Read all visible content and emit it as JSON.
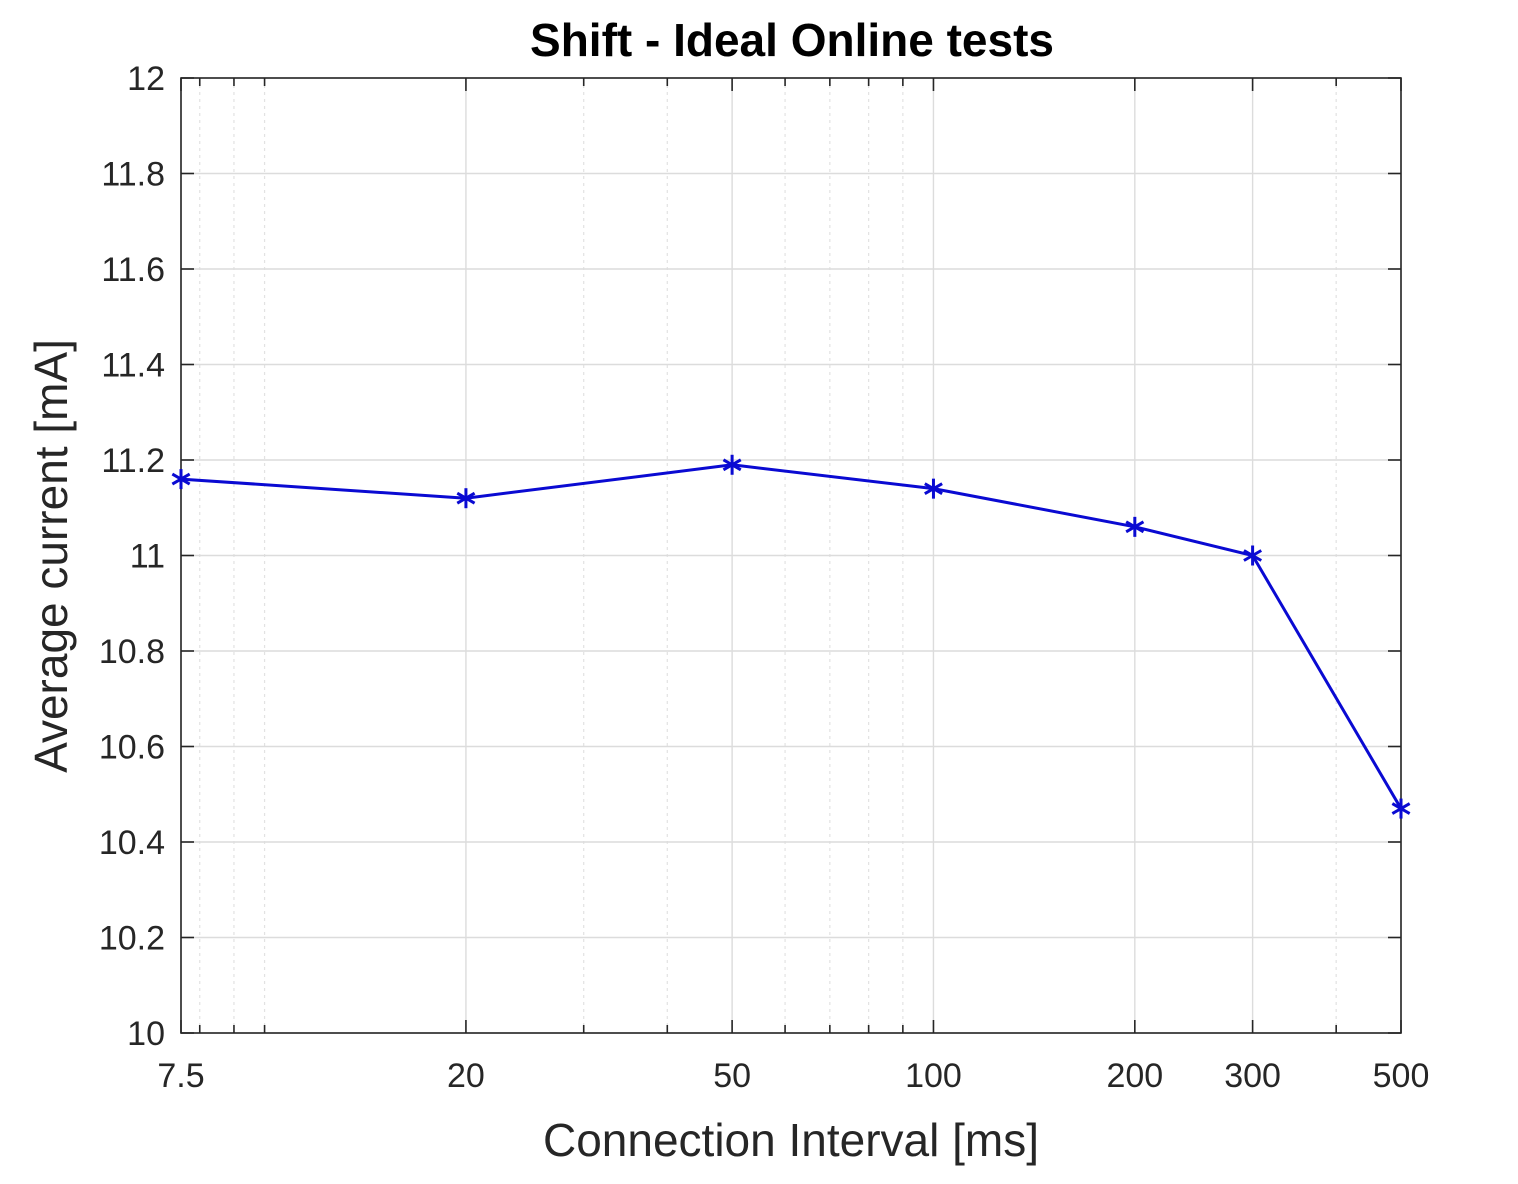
{
  "chart_data": {
    "type": "line",
    "title": "Shift - Ideal Online tests",
    "xlabel": "Connection Interval [ms]",
    "ylabel": "Average current [mA]",
    "xscale": "log",
    "xlim": [
      7.5,
      500
    ],
    "ylim": [
      10,
      12
    ],
    "grid": true,
    "minor_grid": true,
    "x_ticks": [
      7.5,
      20,
      50,
      100,
      200,
      300,
      500
    ],
    "x_tick_labels": [
      "7.5",
      "20",
      "50",
      "100",
      "200",
      "300",
      "500"
    ],
    "y_ticks": [
      10,
      10.2,
      10.4,
      10.6,
      10.8,
      11,
      11.2,
      11.4,
      11.6,
      11.8,
      12
    ],
    "y_tick_labels": [
      "10",
      "10.2",
      "10.4",
      "10.6",
      "10.8",
      "11",
      "11.2",
      "11.4",
      "11.6",
      "11.8",
      "12"
    ],
    "series": [
      {
        "x": [
          7.5,
          20,
          50,
          100,
          200,
          300,
          500
        ],
        "y": [
          11.16,
          11.12,
          11.19,
          11.14,
          11.06,
          11.0,
          10.47
        ],
        "color": "#0a0ad2",
        "marker": "asterisk"
      }
    ]
  }
}
